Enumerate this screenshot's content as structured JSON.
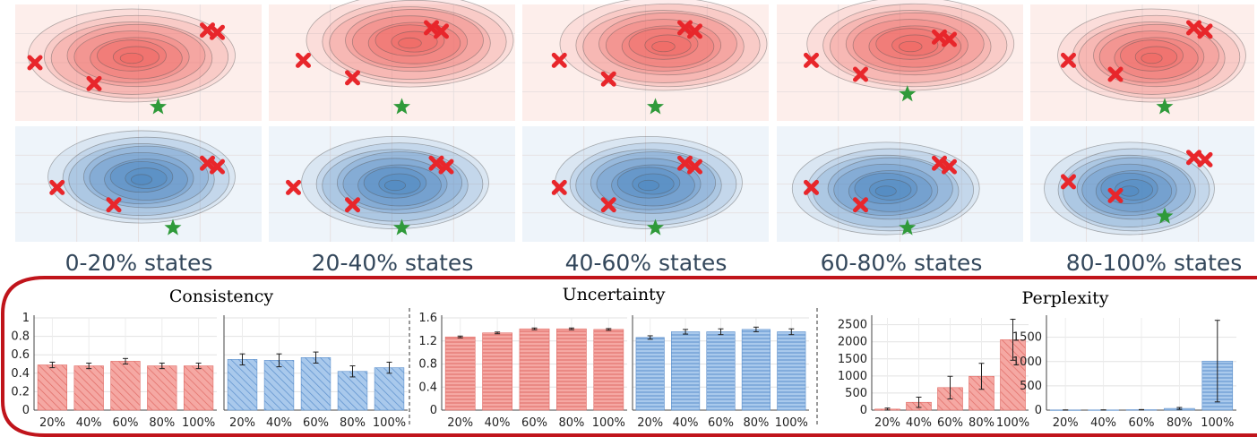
{
  "kde_panels": {
    "state_labels": [
      "0-20% states",
      "20-40% states",
      "40-60% states",
      "60-80% states",
      "80-100% states"
    ],
    "colors": {
      "red_fill": "#f0645f",
      "red_bg": "#fdeeeb",
      "blue_fill": "#4a86c0",
      "blue_bg": "#eef4fa",
      "cross": "#e8262b",
      "star": "#2f9a3a"
    }
  },
  "metrics": [
    {
      "title": "Consistency"
    },
    {
      "title": "Uncertainty"
    },
    {
      "title": "Perplexity"
    }
  ],
  "colors": {
    "red_bar": "#f5a8a3",
    "red_hatch": "#e06a64",
    "blue_bar": "#a9c9ec",
    "blue_hatch": "#5b8fcc",
    "frame": "#c0141b",
    "label": "#33475b"
  },
  "chart_data": [
    {
      "type": "bar",
      "metric": "Consistency",
      "color": "red",
      "hatch": "diagonal",
      "categories": [
        "20%",
        "40%",
        "60%",
        "80%",
        "100%"
      ],
      "values": [
        0.49,
        0.48,
        0.53,
        0.48,
        0.48
      ],
      "errors": [
        0.03,
        0.03,
        0.03,
        0.03,
        0.03
      ],
      "ylim": [
        0,
        1
      ],
      "yticks": [
        "0",
        "0.2",
        "0.4",
        "0.6",
        "0.8",
        "1"
      ],
      "ytick_values": [
        0,
        0.2,
        0.4,
        0.6,
        0.8,
        1
      ]
    },
    {
      "type": "bar",
      "metric": "Consistency",
      "color": "blue",
      "hatch": "diagonal",
      "categories": [
        "20%",
        "40%",
        "60%",
        "80%",
        "100%"
      ],
      "values": [
        0.55,
        0.54,
        0.57,
        0.42,
        0.46
      ],
      "errors": [
        0.06,
        0.07,
        0.06,
        0.06,
        0.06
      ],
      "ylim": [
        0,
        1
      ],
      "yticks": [],
      "ytick_values": [
        0,
        0.2,
        0.4,
        0.6,
        0.8,
        1
      ]
    },
    {
      "type": "bar",
      "metric": "Uncertainty",
      "color": "red",
      "hatch": "horizontal",
      "categories": [
        "20%",
        "40%",
        "60%",
        "80%",
        "100%"
      ],
      "values": [
        1.27,
        1.34,
        1.41,
        1.41,
        1.4
      ],
      "errors": [
        0.015,
        0.015,
        0.015,
        0.015,
        0.015
      ],
      "ylim": [
        0,
        1.6
      ],
      "yticks": [
        "0",
        "0.4",
        "0.8",
        "1.2",
        "1.6"
      ],
      "ytick_values": [
        0,
        0.4,
        0.8,
        1.2,
        1.6
      ]
    },
    {
      "type": "bar",
      "metric": "Uncertainty",
      "color": "blue",
      "hatch": "horizontal",
      "categories": [
        "20%",
        "40%",
        "60%",
        "80%",
        "100%"
      ],
      "values": [
        1.26,
        1.36,
        1.36,
        1.4,
        1.36
      ],
      "errors": [
        0.03,
        0.04,
        0.05,
        0.04,
        0.05
      ],
      "ylim": [
        0,
        1.6
      ],
      "yticks": [],
      "ytick_values": [
        0,
        0.4,
        0.8,
        1.2,
        1.6
      ]
    },
    {
      "type": "bar",
      "metric": "Perplexity",
      "color": "red",
      "hatch": "diagonal",
      "categories": [
        "20%",
        "40%",
        "60%",
        "80%",
        "100%"
      ],
      "values": [
        30,
        230,
        660,
        990,
        2060
      ],
      "errors": [
        30,
        150,
        330,
        380,
        600
      ],
      "ylim": [
        0,
        2700
      ],
      "yticks": [
        "0",
        "500",
        "1000",
        "1500",
        "2000",
        "2500"
      ],
      "ytick_values": [
        0,
        500,
        1000,
        1500,
        2000,
        2500
      ]
    },
    {
      "type": "bar",
      "metric": "Perplexity",
      "color": "blue",
      "hatch": "horizontal",
      "categories": [
        "20%",
        "40%",
        "60%",
        "80%",
        "100%"
      ],
      "values": [
        3,
        4,
        8,
        35,
        1010
      ],
      "errors": [
        2,
        2,
        4,
        20,
        840
      ],
      "ylim": [
        0,
        1900
      ],
      "yticks": [
        "0",
        "500",
        "1000",
        "1500"
      ],
      "ytick_values": [
        0,
        500,
        1000,
        1500
      ]
    }
  ]
}
